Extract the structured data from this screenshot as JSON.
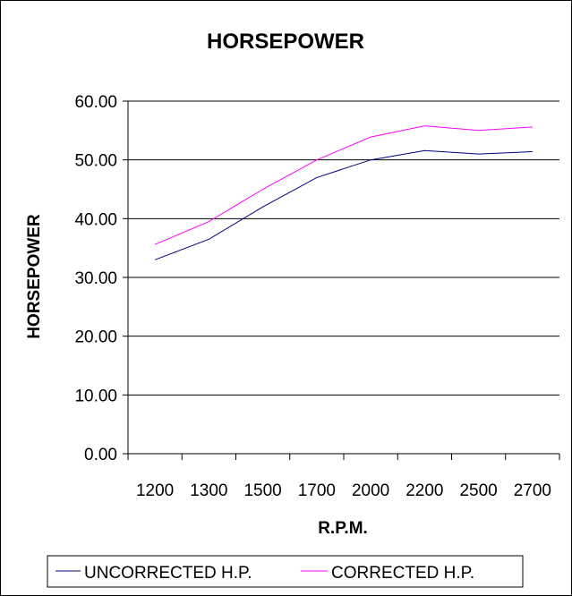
{
  "chart_data": {
    "type": "line",
    "title": "HORSEPOWER",
    "xlabel": "R.P.M.",
    "ylabel": "HORSEPOWER",
    "categories": [
      "1200",
      "1300",
      "1500",
      "1700",
      "2000",
      "2200",
      "2500",
      "2700"
    ],
    "y_tick_labels": [
      "0.00",
      "10.00",
      "20.00",
      "30.00",
      "40.00",
      "50.00",
      "60.00"
    ],
    "ylim": [
      0,
      60
    ],
    "grid": "horizontal",
    "legend_position": "bottom",
    "series": [
      {
        "name": "UNCORRECTED H.P.",
        "color": "#000080",
        "values": [
          33.0,
          36.5,
          42.0,
          47.0,
          50.0,
          51.6,
          51.0,
          51.4
        ]
      },
      {
        "name": "CORRECTED H.P.",
        "color": "#ff00ff",
        "values": [
          35.6,
          39.5,
          45.0,
          50.0,
          53.9,
          55.8,
          55.0,
          55.6
        ]
      }
    ]
  }
}
